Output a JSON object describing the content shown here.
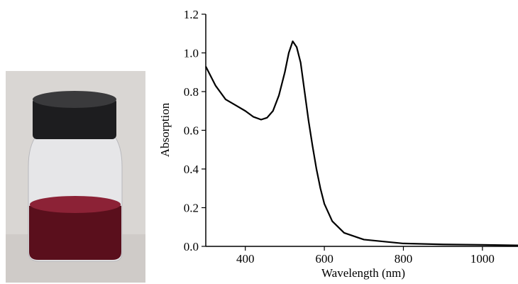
{
  "chart_data": {
    "type": "line",
    "x_label": "Wavelength (nm)",
    "y_label": "Absorption",
    "x": [
      300,
      325,
      350,
      375,
      400,
      420,
      440,
      455,
      470,
      485,
      500,
      510,
      520,
      530,
      540,
      550,
      560,
      570,
      580,
      590,
      600,
      620,
      650,
      700,
      800,
      900,
      1000,
      1090
    ],
    "series": [
      {
        "color": "#000000",
        "values": [
          0.93,
          0.83,
          0.76,
          0.73,
          0.7,
          0.67,
          0.655,
          0.665,
          0.7,
          0.78,
          0.9,
          1.0,
          1.06,
          1.03,
          0.95,
          0.8,
          0.65,
          0.52,
          0.4,
          0.3,
          0.22,
          0.13,
          0.07,
          0.035,
          0.015,
          0.01,
          0.008,
          0.005
        ]
      }
    ],
    "xlim": [
      300,
      1090
    ],
    "ylim": [
      0,
      1.2
    ],
    "xticks": [
      400,
      600,
      800,
      1000
    ],
    "yticks": [
      {
        "value": 0,
        "label": "0.0"
      },
      0.2,
      0.4,
      0.6,
      0.8,
      {
        "value": 1,
        "label": "1.0"
      },
      1.2
    ]
  }
}
